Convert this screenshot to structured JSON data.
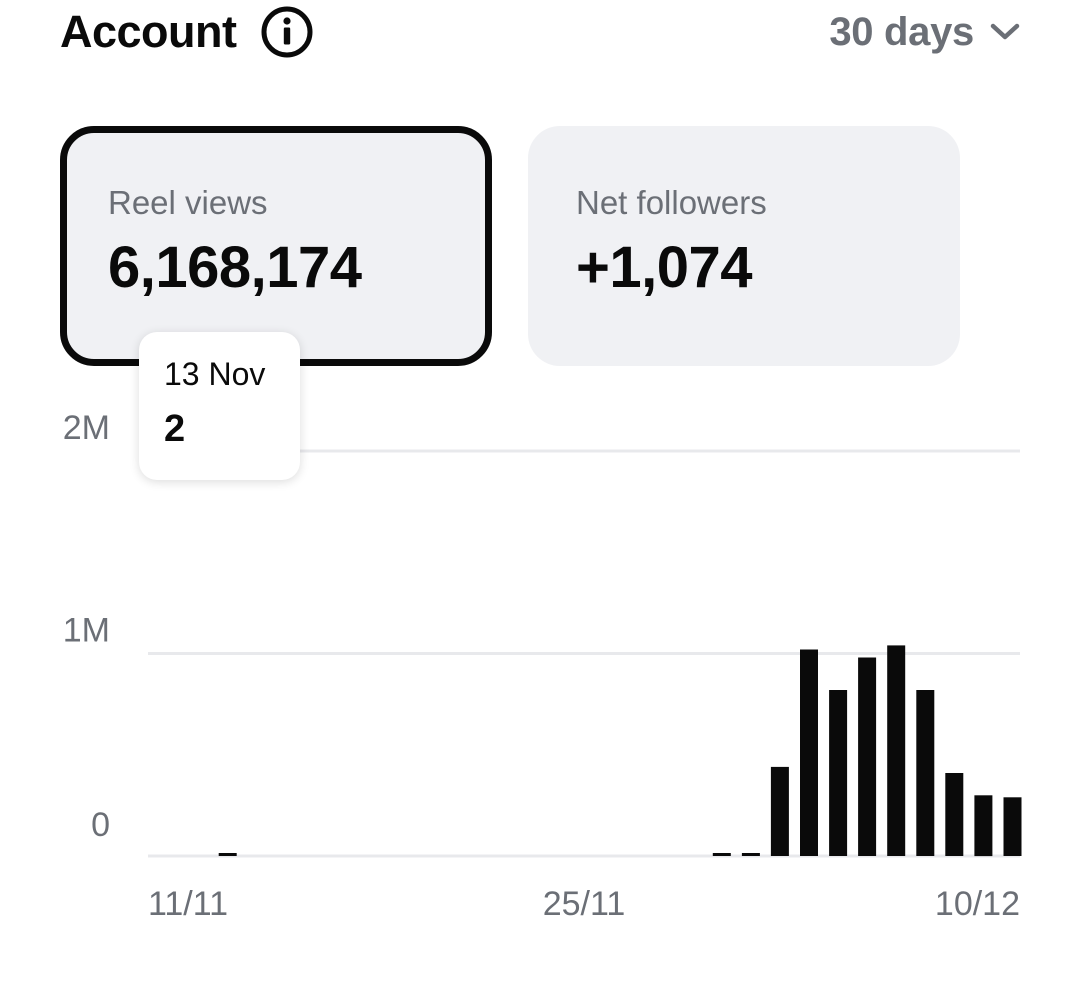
{
  "header": {
    "title": "Account",
    "range_label": "30 days"
  },
  "metrics": {
    "reel_views": {
      "label": "Reel views",
      "value": "6,168,174"
    },
    "net_followers": {
      "label": "Net followers",
      "value": "+1,074"
    }
  },
  "tooltip": {
    "date": "13 Nov",
    "value": "2"
  },
  "colors": {
    "bar": "#0a0a0a",
    "gridline": "#e8e9ec",
    "muted_text": "#6b6f76",
    "card_bg": "#f0f1f4"
  },
  "chart_data": {
    "type": "bar",
    "y_ticks": [
      "0",
      "1M",
      "2M"
    ],
    "ylim": [
      0,
      2000000
    ],
    "x_tick_labels": [
      "11/11",
      "25/11",
      "10/12"
    ],
    "categories": [
      "11/11",
      "12/11",
      "13/11",
      "14/11",
      "15/11",
      "16/11",
      "17/11",
      "18/11",
      "19/11",
      "20/11",
      "21/11",
      "22/11",
      "23/11",
      "24/11",
      "25/11",
      "26/11",
      "27/11",
      "28/11",
      "29/11",
      "30/11",
      "1/12",
      "2/12",
      "3/12",
      "4/12",
      "5/12",
      "6/12",
      "7/12",
      "8/12",
      "9/12",
      "10/12"
    ],
    "values": [
      0,
      0,
      2,
      0,
      0,
      0,
      0,
      0,
      0,
      0,
      0,
      0,
      0,
      0,
      0,
      0,
      0,
      0,
      0,
      8000,
      10000,
      440000,
      1020000,
      820000,
      980000,
      1040000,
      820000,
      410000,
      300000,
      290000
    ],
    "grid": true,
    "legend": "none"
  }
}
